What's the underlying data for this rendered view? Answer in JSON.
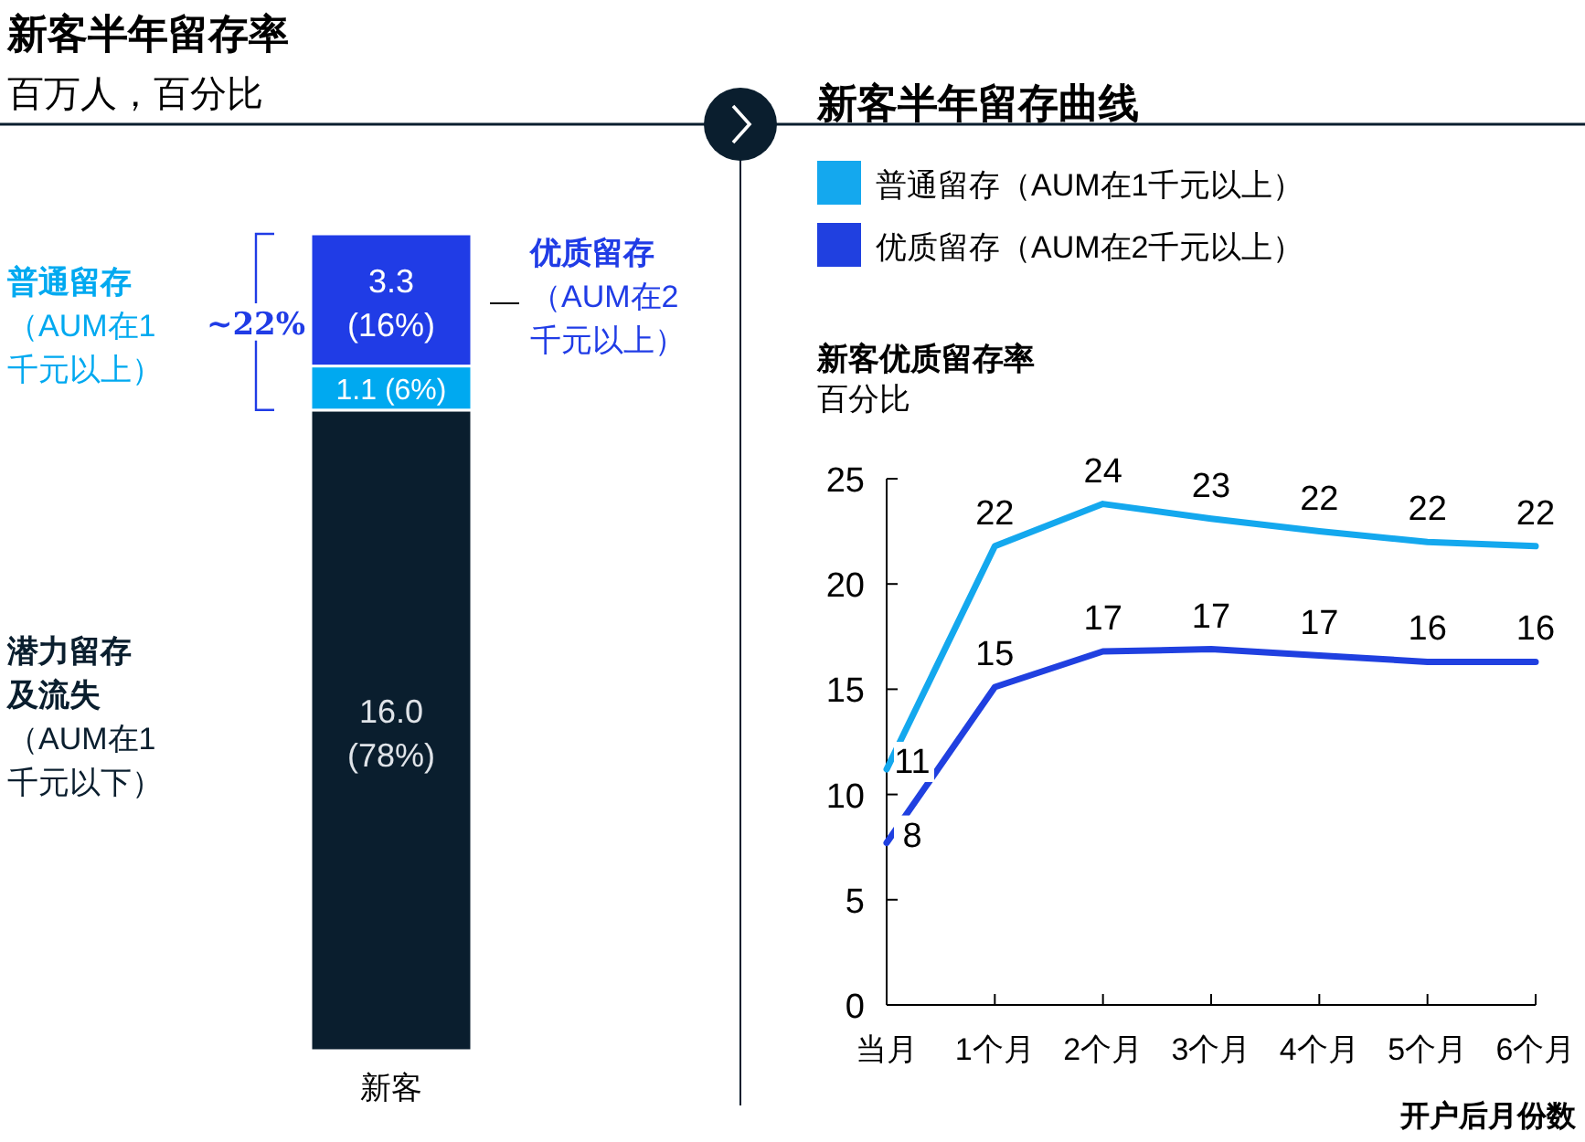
{
  "chart_data": [
    {
      "type": "bar",
      "title": "新客半年留存率",
      "subtitle": "百万人，百分比",
      "categories": [
        "新客"
      ],
      "stacked": true,
      "legend": false,
      "tick_labels": "x",
      "annotations": [
        "~22%"
      ],
      "series": [
        {
          "name": "**潜力留存及流失**（AUM在1千元以下）",
          "color": "#0a1e2e",
          "values": [
            16.0
          ],
          "value_labels": [
            "16.0 (78%)"
          ]
        },
        {
          "name": "**普通留存**（AUM在1千元以上）",
          "color": "#00a9f0",
          "values": [
            1.1
          ],
          "value_labels": [
            "1.1 (6%)"
          ]
        },
        {
          "name": "**优质留存**（AUM在2千元以上）",
          "color": "#203ce6",
          "values": [
            3.3
          ],
          "value_labels": [
            "3.3 (16%)"
          ]
        }
      ]
    },
    {
      "type": "line",
      "title": "新客半年留存曲线",
      "subtitle": "新客优质留存率",
      "ylabel": "百分比",
      "xlabel": "开户后月份数",
      "legend": "top left",
      "grid": false,
      "categories": [
        "当月",
        "1个月",
        "2个月",
        "3个月",
        "4个月",
        "5个月",
        "6个月"
      ],
      "ylim": [
        0,
        25
      ],
      "yticks": [
        0,
        5,
        10,
        15,
        20,
        25
      ],
      "series": [
        {
          "name": "普通留存（AUM在1千元以上）",
          "color": "#14a8ee",
          "values": [
            11.2,
            21.8,
            23.8,
            23.1,
            22.5,
            22.0,
            21.8
          ],
          "value_labels": [
            "11",
            "22",
            "24",
            "23",
            "22",
            "22",
            "22"
          ]
        },
        {
          "name": "优质留存（AUM在2千元以上）",
          "color": "#2040e0",
          "values": [
            7.7,
            15.1,
            16.8,
            16.9,
            16.6,
            16.3,
            16.3
          ],
          "value_labels": [
            "8",
            "15",
            "17",
            "17",
            "17",
            "16",
            "16"
          ]
        }
      ]
    }
  ]
}
